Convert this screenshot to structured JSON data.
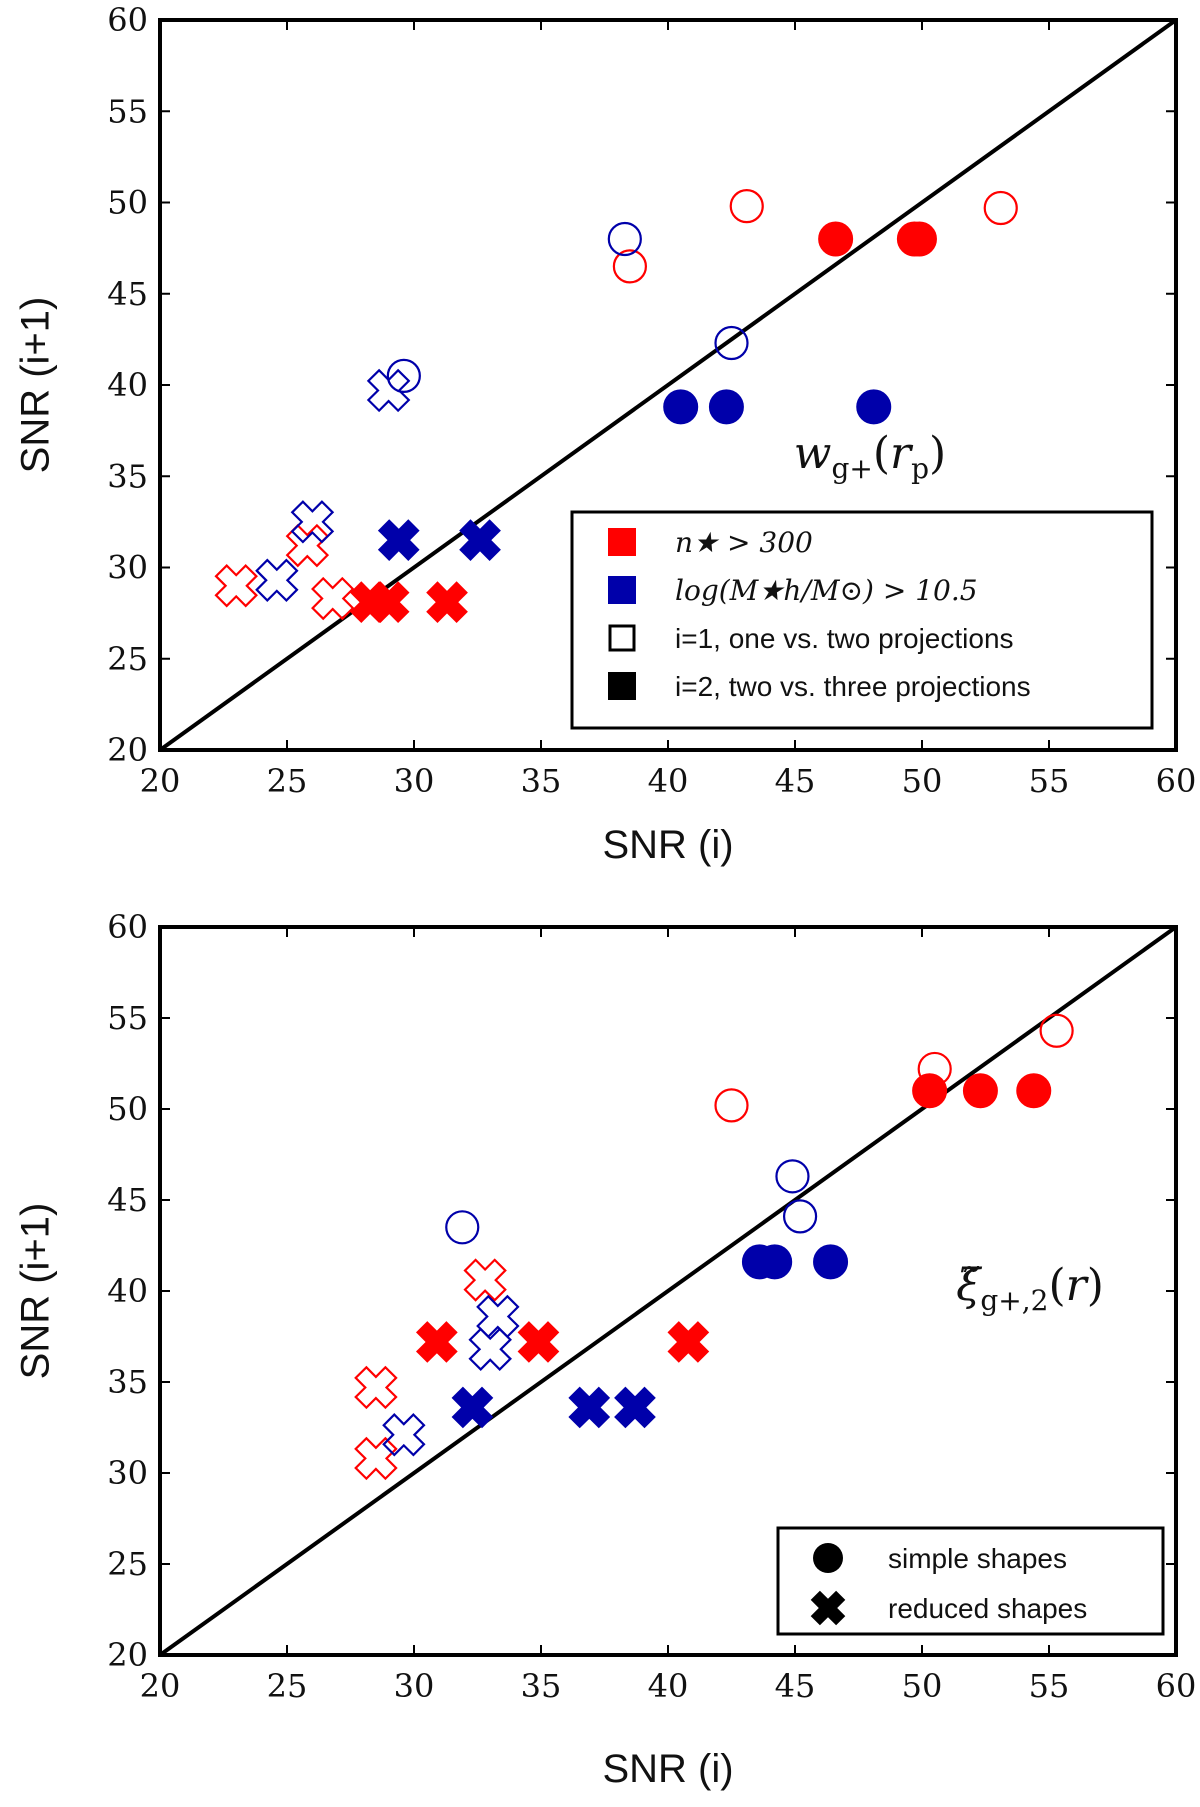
{
  "colors": {
    "red": "#ff0000",
    "blue": "#0000aa",
    "black": "#000000"
  },
  "chart_data": [
    {
      "type": "scatter",
      "xlabel": "SNR (i)",
      "ylabel": "SNR (i+1)",
      "xlim": [
        20,
        60
      ],
      "ylim": [
        20,
        60
      ],
      "xticks": [
        "20",
        "25",
        "30",
        "35",
        "40",
        "45",
        "50",
        "55",
        "60"
      ],
      "yticks": [
        "20",
        "25",
        "30",
        "35",
        "40",
        "45",
        "50",
        "55",
        "60"
      ],
      "diagonal": true,
      "annotation": "w_{g+}(r_p)",
      "annotation_text": "wg+(rp)",
      "legend_position": "lower-right",
      "legend": [
        {
          "marker": "square-filled",
          "color": "red",
          "label": "n★ > 300"
        },
        {
          "marker": "square-filled",
          "color": "blue",
          "label": "log(M★h/M⊙) > 10.5"
        },
        {
          "marker": "square-open",
          "color": "black",
          "label": "i=1, one vs. two projections"
        },
        {
          "marker": "square-filled",
          "color": "black",
          "label": "i=2, two vs. three projections"
        }
      ],
      "series": [
        {
          "color": "red",
          "marker": "circle",
          "filled": false,
          "points": [
            [
              38.5,
              46.5
            ],
            [
              43.1,
              49.8
            ],
            [
              53.1,
              49.7
            ]
          ]
        },
        {
          "color": "red",
          "marker": "circle",
          "filled": true,
          "points": [
            [
              46.6,
              48.0
            ],
            [
              49.7,
              48.0
            ],
            [
              49.9,
              48.0
            ]
          ]
        },
        {
          "color": "blue",
          "marker": "circle",
          "filled": false,
          "points": [
            [
              38.3,
              48.0
            ],
            [
              42.5,
              42.3
            ],
            [
              29.6,
              40.5
            ]
          ]
        },
        {
          "color": "blue",
          "marker": "circle",
          "filled": true,
          "points": [
            [
              40.5,
              38.8
            ],
            [
              42.3,
              38.8
            ],
            [
              48.1,
              38.8
            ]
          ]
        },
        {
          "color": "red",
          "marker": "x",
          "filled": false,
          "points": [
            [
              23.0,
              29.0
            ],
            [
              25.8,
              31.2
            ],
            [
              26.8,
              28.3
            ]
          ]
        },
        {
          "color": "red",
          "marker": "x",
          "filled": true,
          "points": [
            [
              28.3,
              28.1
            ],
            [
              29.0,
              28.1
            ],
            [
              31.3,
              28.1
            ]
          ]
        },
        {
          "color": "blue",
          "marker": "x",
          "filled": false,
          "points": [
            [
              24.6,
              29.3
            ],
            [
              26.0,
              32.5
            ],
            [
              29.0,
              39.7
            ]
          ]
        },
        {
          "color": "blue",
          "marker": "x",
          "filled": true,
          "points": [
            [
              29.4,
              31.5
            ],
            [
              32.6,
              31.5
            ]
          ]
        }
      ]
    },
    {
      "type": "scatter",
      "xlabel": "SNR (i)",
      "ylabel": "SNR (i+1)",
      "xlim": [
        20,
        60
      ],
      "ylim": [
        20,
        60
      ],
      "xticks": [
        "20",
        "25",
        "30",
        "35",
        "40",
        "45",
        "50",
        "55",
        "60"
      ],
      "yticks": [
        "20",
        "25",
        "30",
        "35",
        "40",
        "45",
        "50",
        "55",
        "60"
      ],
      "diagonal": true,
      "annotation": "\\tilde{\\xi}_{g+,2}(r)",
      "annotation_text": "ξ̃g+,2(r)",
      "legend_position": "lower-right",
      "legend": [
        {
          "marker": "circle-filled",
          "color": "black",
          "label": "simple shapes"
        },
        {
          "marker": "x-filled",
          "color": "black",
          "label": "reduced shapes"
        }
      ],
      "series": [
        {
          "color": "red",
          "marker": "circle",
          "filled": false,
          "points": [
            [
              42.5,
              50.2
            ],
            [
              50.5,
              52.2
            ],
            [
              55.3,
              54.3
            ]
          ]
        },
        {
          "color": "red",
          "marker": "circle",
          "filled": true,
          "points": [
            [
              50.3,
              51.0
            ],
            [
              52.3,
              51.0
            ],
            [
              54.4,
              51.0
            ]
          ]
        },
        {
          "color": "blue",
          "marker": "circle",
          "filled": false,
          "points": [
            [
              31.9,
              43.5
            ],
            [
              44.9,
              46.3
            ],
            [
              45.2,
              44.1
            ]
          ]
        },
        {
          "color": "blue",
          "marker": "circle",
          "filled": true,
          "points": [
            [
              43.6,
              41.6
            ],
            [
              44.2,
              41.6
            ],
            [
              46.4,
              41.6
            ]
          ]
        },
        {
          "color": "red",
          "marker": "x",
          "filled": false,
          "points": [
            [
              28.5,
              34.7
            ],
            [
              28.5,
              30.8
            ],
            [
              32.8,
              40.6
            ]
          ]
        },
        {
          "color": "red",
          "marker": "x",
          "filled": true,
          "points": [
            [
              30.9,
              37.2
            ],
            [
              34.9,
              37.2
            ],
            [
              40.8,
              37.2
            ]
          ]
        },
        {
          "color": "blue",
          "marker": "x",
          "filled": false,
          "points": [
            [
              29.6,
              32.1
            ],
            [
              33.0,
              36.8
            ],
            [
              33.3,
              38.6
            ]
          ]
        },
        {
          "color": "blue",
          "marker": "x",
          "filled": true,
          "points": [
            [
              32.3,
              33.6
            ],
            [
              36.9,
              33.6
            ],
            [
              38.7,
              33.6
            ]
          ]
        }
      ]
    }
  ]
}
